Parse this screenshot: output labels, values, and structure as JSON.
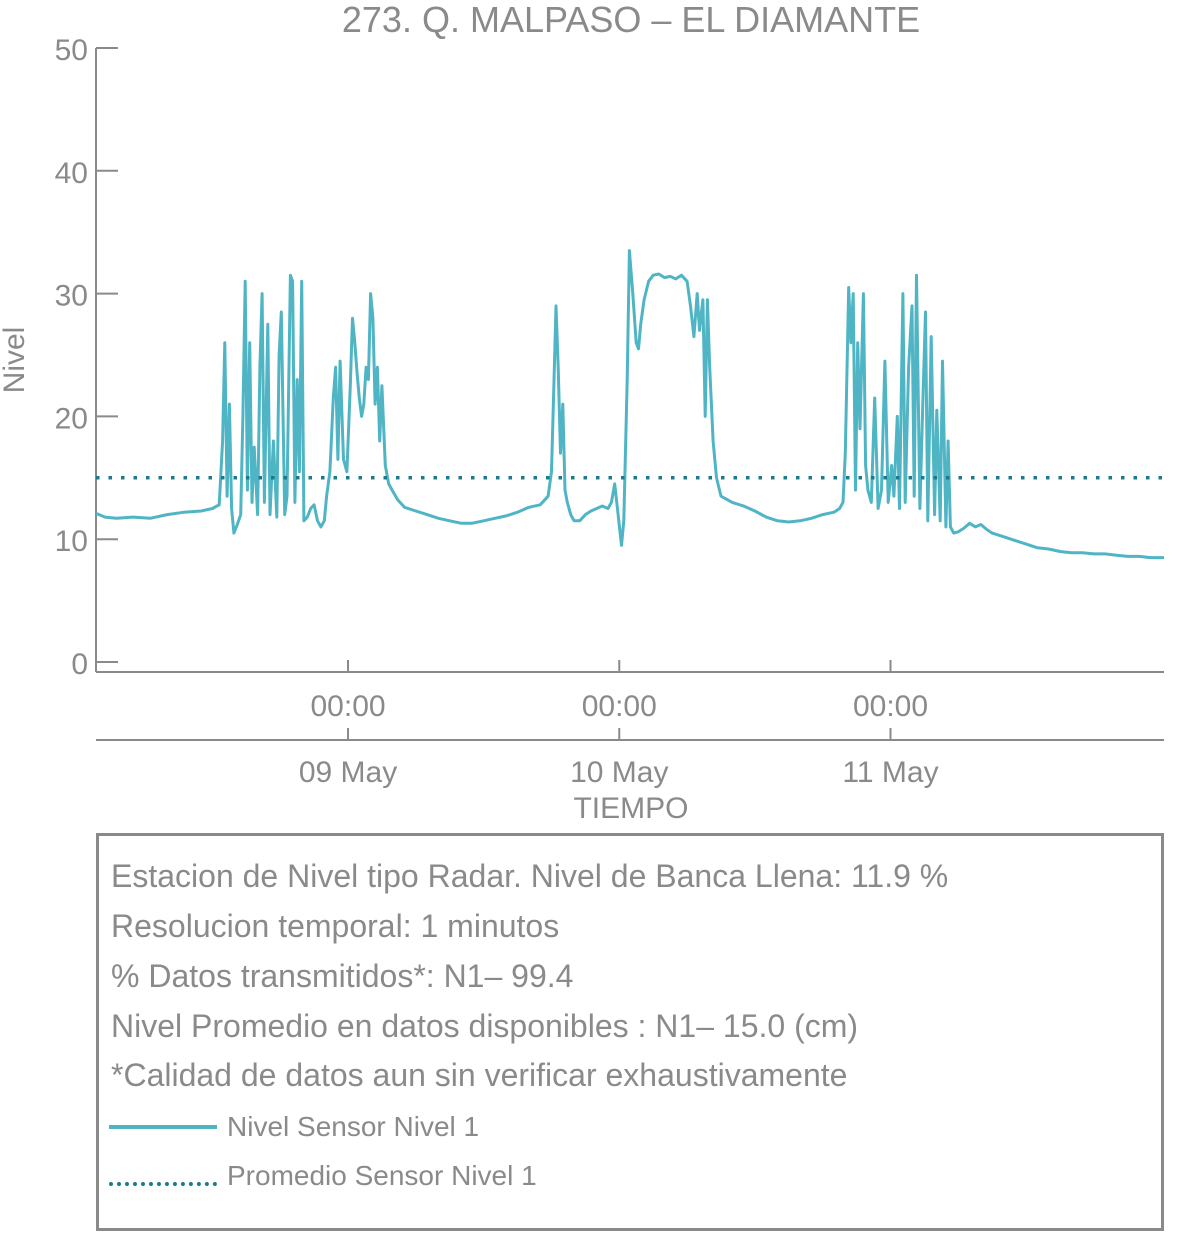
{
  "colors": {
    "series": "#4fb5c4",
    "mean": "#1c7b8a",
    "axis": "#8a8a8a",
    "text": "#8a8a8a"
  },
  "chart_data": {
    "type": "line",
    "title": "273. Q. MALPASO – EL DIAMANTE",
    "xlabel": "TIEMPO",
    "ylabel": "Nivel",
    "ylim": [
      0,
      50
    ],
    "yticks": [
      0,
      10,
      20,
      30,
      40,
      50
    ],
    "xlim_hours": [
      -22.3,
      72.2
    ],
    "xticks": [
      {
        "hour": 0,
        "time": "00:00",
        "date": "09 May"
      },
      {
        "hour": 24,
        "time": "00:00",
        "date": "10 May"
      },
      {
        "hour": 48,
        "time": "00:00",
        "date": "11 May"
      }
    ],
    "grid": false,
    "legend_placement": "below",
    "series": [
      {
        "name": "Nivel Sensor Nivel 1",
        "style": "solid",
        "points": [
          [
            -22.3,
            12.1
          ],
          [
            -21.5,
            11.8
          ],
          [
            -20.5,
            11.7
          ],
          [
            -19,
            11.8
          ],
          [
            -17.5,
            11.7
          ],
          [
            -16,
            12.0
          ],
          [
            -14.5,
            12.2
          ],
          [
            -13,
            12.3
          ],
          [
            -12,
            12.5
          ],
          [
            -11.4,
            12.8
          ],
          [
            -11.1,
            18.0
          ],
          [
            -10.9,
            26.0
          ],
          [
            -10.7,
            13.5
          ],
          [
            -10.5,
            21.0
          ],
          [
            -10.3,
            12.5
          ],
          [
            -10.1,
            10.5
          ],
          [
            -9.8,
            11.2
          ],
          [
            -9.5,
            12.0
          ],
          [
            -9.3,
            20.0
          ],
          [
            -9.1,
            31.0
          ],
          [
            -8.9,
            14.0
          ],
          [
            -8.7,
            26.0
          ],
          [
            -8.5,
            13.0
          ],
          [
            -8.3,
            17.5
          ],
          [
            -8.0,
            12.0
          ],
          [
            -7.8,
            24.0
          ],
          [
            -7.6,
            30.0
          ],
          [
            -7.4,
            13.0
          ],
          [
            -7.1,
            27.5
          ],
          [
            -6.9,
            12.0
          ],
          [
            -6.6,
            18.0
          ],
          [
            -6.3,
            11.8
          ],
          [
            -6.1,
            25.0
          ],
          [
            -5.9,
            28.5
          ],
          [
            -5.6,
            12.0
          ],
          [
            -5.4,
            13.5
          ],
          [
            -5.1,
            31.5
          ],
          [
            -4.9,
            31.0
          ],
          [
            -4.7,
            13.0
          ],
          [
            -4.5,
            23.0
          ],
          [
            -4.3,
            15.5
          ],
          [
            -4.1,
            31.0
          ],
          [
            -3.9,
            11.5
          ],
          [
            -3.6,
            11.8
          ],
          [
            -3.3,
            12.5
          ],
          [
            -3.0,
            12.8
          ],
          [
            -2.7,
            11.5
          ],
          [
            -2.4,
            11.0
          ],
          [
            -2.1,
            11.5
          ],
          [
            -1.9,
            13.5
          ],
          [
            -1.6,
            15.5
          ],
          [
            -1.3,
            21.5
          ],
          [
            -1.1,
            24.0
          ],
          [
            -0.9,
            16.5
          ],
          [
            -0.7,
            24.5
          ],
          [
            -0.4,
            16.5
          ],
          [
            -0.1,
            15.5
          ],
          [
            0.2,
            22.5
          ],
          [
            0.4,
            28.0
          ],
          [
            0.6,
            26.0
          ],
          [
            0.8,
            23.5
          ],
          [
            1.0,
            21.5
          ],
          [
            1.2,
            20.0
          ],
          [
            1.4,
            21.0
          ],
          [
            1.6,
            24.0
          ],
          [
            1.8,
            23.0
          ],
          [
            2.0,
            30.0
          ],
          [
            2.2,
            28.0
          ],
          [
            2.4,
            21.0
          ],
          [
            2.6,
            24.0
          ],
          [
            2.8,
            18.0
          ],
          [
            3.0,
            22.5
          ],
          [
            3.3,
            16.0
          ],
          [
            3.6,
            14.5
          ],
          [
            3.9,
            14.0
          ],
          [
            4.4,
            13.2
          ],
          [
            5.0,
            12.6
          ],
          [
            6,
            12.3
          ],
          [
            7,
            12.0
          ],
          [
            8,
            11.7
          ],
          [
            9,
            11.5
          ],
          [
            10,
            11.3
          ],
          [
            11,
            11.3
          ],
          [
            12,
            11.5
          ],
          [
            13,
            11.7
          ],
          [
            14,
            11.9
          ],
          [
            15,
            12.2
          ],
          [
            16,
            12.6
          ],
          [
            17,
            12.8
          ],
          [
            17.7,
            13.5
          ],
          [
            18.0,
            15.5
          ],
          [
            18.2,
            22.0
          ],
          [
            18.4,
            29.0
          ],
          [
            18.6,
            24.0
          ],
          [
            18.8,
            17.0
          ],
          [
            19.0,
            21.0
          ],
          [
            19.2,
            14.0
          ],
          [
            19.4,
            13.0
          ],
          [
            19.7,
            12.0
          ],
          [
            20.0,
            11.5
          ],
          [
            20.5,
            11.5
          ],
          [
            21.0,
            12.0
          ],
          [
            21.5,
            12.3
          ],
          [
            22.0,
            12.5
          ],
          [
            22.5,
            12.7
          ],
          [
            23.0,
            12.5
          ],
          [
            23.3,
            13.0
          ],
          [
            23.6,
            14.5
          ],
          [
            23.9,
            12.0
          ],
          [
            24.2,
            9.5
          ],
          [
            24.4,
            11.5
          ],
          [
            24.7,
            23.0
          ],
          [
            24.9,
            33.5
          ],
          [
            25.2,
            30.0
          ],
          [
            25.5,
            26.0
          ],
          [
            25.7,
            25.5
          ],
          [
            25.9,
            27.5
          ],
          [
            26.2,
            29.5
          ],
          [
            26.6,
            31.0
          ],
          [
            27,
            31.5
          ],
          [
            27.5,
            31.6
          ],
          [
            28,
            31.3
          ],
          [
            28.5,
            31.4
          ],
          [
            29,
            31.2
          ],
          [
            29.5,
            31.5
          ],
          [
            30,
            31.0
          ],
          [
            30.3,
            29.0
          ],
          [
            30.6,
            26.5
          ],
          [
            30.9,
            30.0
          ],
          [
            31.1,
            27.0
          ],
          [
            31.4,
            29.5
          ],
          [
            31.6,
            20.0
          ],
          [
            31.8,
            29.5
          ],
          [
            32.0,
            24.0
          ],
          [
            32.3,
            18.0
          ],
          [
            32.6,
            15.0
          ],
          [
            33,
            13.5
          ],
          [
            34,
            13.0
          ],
          [
            35,
            12.7
          ],
          [
            36,
            12.3
          ],
          [
            37,
            11.8
          ],
          [
            38,
            11.5
          ],
          [
            39,
            11.4
          ],
          [
            40,
            11.5
          ],
          [
            41,
            11.7
          ],
          [
            42,
            12.0
          ],
          [
            43,
            12.2
          ],
          [
            43.5,
            12.5
          ],
          [
            43.8,
            13.0
          ],
          [
            44.0,
            17.0
          ],
          [
            44.3,
            30.5
          ],
          [
            44.5,
            26.0
          ],
          [
            44.7,
            30.0
          ],
          [
            44.9,
            14.0
          ],
          [
            45.1,
            26.0
          ],
          [
            45.3,
            19.0
          ],
          [
            45.6,
            30.0
          ],
          [
            45.8,
            16.0
          ],
          [
            46.0,
            14.0
          ],
          [
            46.3,
            13.0
          ],
          [
            46.6,
            21.5
          ],
          [
            46.9,
            12.5
          ],
          [
            47.2,
            14.0
          ],
          [
            47.5,
            24.5
          ],
          [
            47.8,
            13.0
          ],
          [
            48.1,
            16.0
          ],
          [
            48.3,
            13.5
          ],
          [
            48.6,
            20.0
          ],
          [
            48.8,
            12.5
          ],
          [
            49.1,
            30.0
          ],
          [
            49.3,
            13.0
          ],
          [
            49.6,
            24.0
          ],
          [
            49.9,
            29.0
          ],
          [
            50.1,
            13.5
          ],
          [
            50.3,
            31.5
          ],
          [
            50.6,
            12.5
          ],
          [
            50.9,
            22.5
          ],
          [
            51.1,
            28.5
          ],
          [
            51.3,
            11.5
          ],
          [
            51.6,
            26.5
          ],
          [
            51.9,
            12.0
          ],
          [
            52.1,
            20.5
          ],
          [
            52.4,
            11.5
          ],
          [
            52.6,
            24.5
          ],
          [
            52.9,
            11.0
          ],
          [
            53.1,
            18.0
          ],
          [
            53.3,
            11.0
          ],
          [
            53.6,
            10.5
          ],
          [
            54,
            10.6
          ],
          [
            54.5,
            10.9
          ],
          [
            55,
            11.3
          ],
          [
            55.5,
            11.0
          ],
          [
            56,
            11.2
          ],
          [
            56.5,
            10.8
          ],
          [
            57,
            10.5
          ],
          [
            58,
            10.2
          ],
          [
            59,
            9.9
          ],
          [
            60,
            9.6
          ],
          [
            61,
            9.3
          ],
          [
            62,
            9.2
          ],
          [
            63,
            9.0
          ],
          [
            64,
            8.9
          ],
          [
            65,
            8.9
          ],
          [
            66,
            8.8
          ],
          [
            67,
            8.8
          ],
          [
            68,
            8.7
          ],
          [
            69,
            8.6
          ],
          [
            70,
            8.6
          ],
          [
            71,
            8.5
          ],
          [
            72.2,
            8.5
          ]
        ]
      },
      {
        "name": "Promedio Sensor Nivel 1",
        "style": "dotted",
        "points": [
          [
            -22.3,
            15.0
          ],
          [
            72.2,
            15.0
          ]
        ]
      }
    ]
  },
  "info": {
    "line1": "Estacion de Nivel tipo Radar. Nivel de Banca Llena: 11.9 %",
    "line2": "Resolucion temporal: 1 minutos",
    "line3": "% Datos transmitidos*: N1– 99.4",
    "line4": "Nivel Promedio en datos disponibles : N1– 15.0 (cm)",
    "line5": "*Calidad de datos aun sin verificar exhaustivamente"
  },
  "legend": {
    "series1": "Nivel Sensor Nivel 1",
    "series2": "Promedio Sensor Nivel 1"
  }
}
